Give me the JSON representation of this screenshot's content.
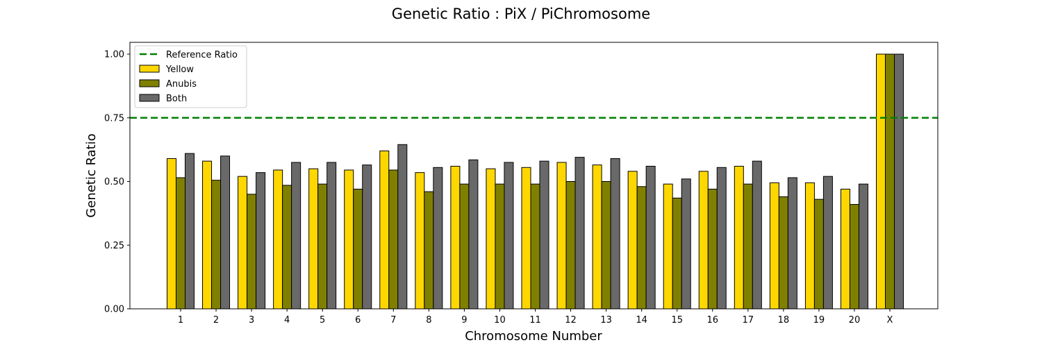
{
  "chart_data": {
    "type": "bar",
    "title": "Genetic Ratio : PiX / PiChromosome",
    "xlabel": "Chromosome Number",
    "ylabel": "Genetic Ratio",
    "ylim": [
      0,
      1.05
    ],
    "yticks": [
      "0.00",
      "0.25",
      "0.50",
      "0.75",
      "1.00"
    ],
    "ytick_values": [
      0,
      0.25,
      0.5,
      0.75,
      1.0
    ],
    "categories": [
      "1",
      "2",
      "3",
      "4",
      "5",
      "6",
      "7",
      "8",
      "9",
      "10",
      "11",
      "12",
      "13",
      "14",
      "15",
      "16",
      "17",
      "18",
      "19",
      "20",
      "X"
    ],
    "series": [
      {
        "name": "Yellow",
        "color": "#FFD700",
        "values": [
          0.59,
          0.58,
          0.52,
          0.545,
          0.55,
          0.545,
          0.62,
          0.535,
          0.56,
          0.55,
          0.555,
          0.575,
          0.565,
          0.54,
          0.49,
          0.54,
          0.56,
          0.495,
          0.495,
          0.47,
          1.0
        ]
      },
      {
        "name": "Anubis",
        "color": "#808000",
        "values": [
          0.515,
          0.505,
          0.45,
          0.485,
          0.49,
          0.47,
          0.545,
          0.46,
          0.49,
          0.49,
          0.49,
          0.5,
          0.5,
          0.48,
          0.435,
          0.47,
          0.49,
          0.44,
          0.43,
          0.41,
          1.0
        ]
      },
      {
        "name": "Both",
        "color": "#696969",
        "values": [
          0.61,
          0.6,
          0.535,
          0.575,
          0.575,
          0.565,
          0.645,
          0.555,
          0.585,
          0.575,
          0.58,
          0.595,
          0.59,
          0.56,
          0.51,
          0.555,
          0.58,
          0.515,
          0.52,
          0.49,
          1.0
        ]
      }
    ],
    "reference_line": {
      "name": "Reference Ratio",
      "value": 0.75,
      "color": "#008000",
      "style": "dashed"
    },
    "legend_position": "top-left",
    "grid": false
  }
}
